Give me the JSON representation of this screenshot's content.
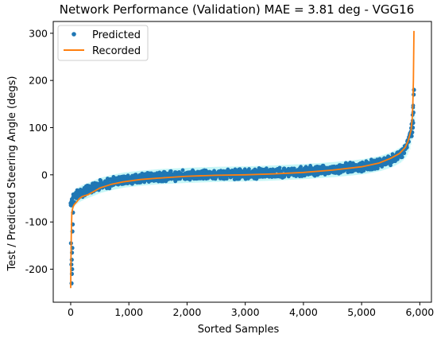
{
  "chart_data": {
    "type": "scatter",
    "title": "Network Performance (Validation)  MAE = 3.81 deg - VGG16",
    "xlabel": "Sorted Samples",
    "ylabel": "Test / Predicted Steering Angle (degs)",
    "xlim": [
      -300,
      6200
    ],
    "ylim": [
      -270,
      325
    ],
    "x_ticks": [
      0,
      1000,
      2000,
      3000,
      4000,
      5000,
      6000
    ],
    "x_tick_labels": [
      "0",
      "1,000",
      "2,000",
      "3,000",
      "4,000",
      "5,000",
      "6,000"
    ],
    "y_ticks": [
      -200,
      -100,
      0,
      100,
      200,
      300
    ],
    "y_tick_labels": [
      "-200",
      "-100",
      "0",
      "100",
      "200",
      "300"
    ],
    "grid": false,
    "legend_position": "top-left",
    "series": [
      {
        "name": "Predicted",
        "kind": "scatter",
        "color": "#1f77b4",
        "curve_x": [
          0,
          10,
          30,
          60,
          100,
          150,
          200,
          300,
          400,
          500,
          700,
          900,
          1200,
          1500,
          2000,
          2500,
          3000,
          3500,
          4000,
          4500,
          5000,
          5300,
          5500,
          5650,
          5750,
          5800,
          5850,
          5880,
          5900
        ],
        "curve_y": [
          -60,
          -55,
          -52,
          -48,
          -44,
          -40,
          -37,
          -32,
          -27,
          -22,
          -16,
          -11,
          -7,
          -4,
          -1,
          1,
          2,
          4,
          7,
          11,
          17,
          24,
          32,
          42,
          55,
          70,
          95,
          125,
          175
        ],
        "spread": 10,
        "outliers": [
          [
            15,
            -230
          ],
          [
            20,
            -210
          ],
          [
            25,
            -200
          ],
          [
            18,
            -180
          ],
          [
            22,
            -165
          ],
          [
            28,
            -155
          ],
          [
            30,
            -120
          ],
          [
            35,
            -105
          ],
          [
            40,
            -80
          ],
          [
            5,
            -145
          ],
          [
            12,
            -190
          ],
          [
            5880,
            100
          ],
          [
            5885,
            110
          ],
          [
            5890,
            132
          ],
          [
            5895,
            170
          ],
          [
            5900,
            180
          ],
          [
            5870,
            90
          ],
          [
            5860,
            82
          ]
        ]
      },
      {
        "name": "Recorded",
        "kind": "line",
        "color": "#ff7f0e",
        "x": [
          0,
          2,
          5,
          10,
          20,
          40,
          60,
          100,
          150,
          200,
          300,
          400,
          500,
          700,
          900,
          1200,
          1500,
          2000,
          2500,
          3000,
          3500,
          4000,
          4500,
          5000,
          5300,
          5500,
          5650,
          5750,
          5800,
          5850,
          5870,
          5880,
          5890,
          5900
        ],
        "y": [
          -240,
          -220,
          -180,
          -130,
          -80,
          -68,
          -63,
          -58,
          -50,
          -46,
          -42,
          -35,
          -28,
          -20,
          -15,
          -10,
          -7,
          -3,
          -1,
          0,
          2,
          5,
          10,
          17,
          25,
          35,
          45,
          58,
          72,
          95,
          120,
          150,
          200,
          305
        ]
      }
    ]
  }
}
